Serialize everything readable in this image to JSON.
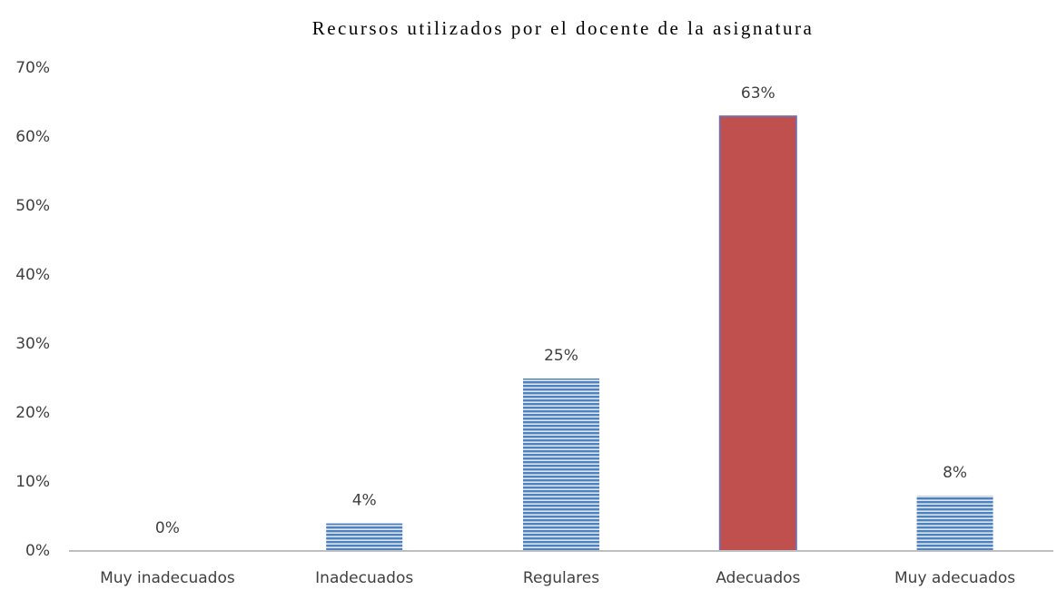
{
  "chart_data": {
    "type": "bar",
    "title": "Recursos utilizados por el docente de la asignatura",
    "categories": [
      "Muy inadecuados",
      "Inadecuados",
      "Regulares",
      "Adecuados",
      "Muy adecuados"
    ],
    "values": [
      0,
      4,
      25,
      63,
      8
    ],
    "value_labels": [
      "0%",
      "4%",
      "25%",
      "63%",
      "8%"
    ],
    "colors": [
      "#4f81bd",
      "#4f81bd",
      "#4f81bd",
      "#c0504d",
      "#4f81bd"
    ],
    "ylim": [
      0,
      70
    ],
    "yticks": [
      {
        "value": 0,
        "label": "0%"
      },
      {
        "value": 10,
        "label": "10%"
      },
      {
        "value": 20,
        "label": "20%"
      },
      {
        "value": 30,
        "label": "30%"
      },
      {
        "value": 40,
        "label": "40%"
      },
      {
        "value": 50,
        "label": "50%"
      },
      {
        "value": 60,
        "label": "60%"
      },
      {
        "value": 70,
        "label": "70%"
      }
    ],
    "grid": false
  }
}
